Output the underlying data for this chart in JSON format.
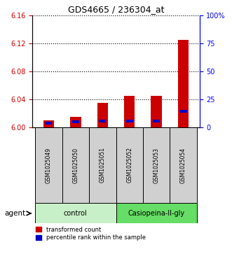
{
  "title": "GDS4665 / 236304_at",
  "samples": [
    "GSM1025049",
    "GSM1025050",
    "GSM1025051",
    "GSM1025052",
    "GSM1025053",
    "GSM1025054"
  ],
  "red_values": [
    6.01,
    6.015,
    6.035,
    6.045,
    6.045,
    6.125
  ],
  "blue_values": [
    3.5,
    4.5,
    5.5,
    5.5,
    5.5,
    14.0
  ],
  "ylim_left": [
    6.0,
    6.16
  ],
  "ylim_right": [
    0,
    100
  ],
  "yticks_left": [
    6.0,
    6.04,
    6.08,
    6.12,
    6.16
  ],
  "yticks_right": [
    0,
    25,
    50,
    75,
    100
  ],
  "ytick_labels_right": [
    "0",
    "25",
    "50",
    "75",
    "100%"
  ],
  "bar_width": 0.4,
  "red_color": "#cc0000",
  "blue_color": "#0000cc",
  "control_color": "#c8f0c8",
  "casio_color": "#66dd66",
  "label_area_color": "#d0d0d0",
  "legend_red": "transformed count",
  "legend_blue": "percentile rank within the sample",
  "agent_label": "agent"
}
